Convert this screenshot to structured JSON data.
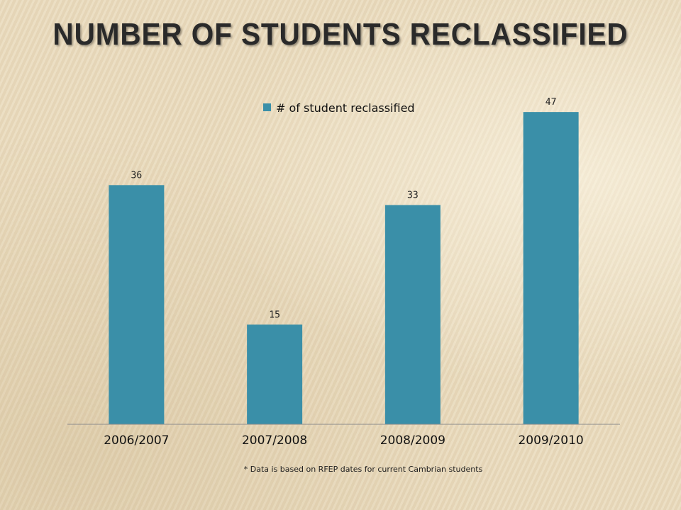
{
  "slide": {
    "title": "NUMBER OF STUDENTS RECLASSIFIED",
    "footnote": "* Data is based on RFEP dates for current Cambrian students"
  },
  "colors": {
    "bar": "#3a8fa8",
    "axis": "#8c8c8c"
  },
  "chart_data": {
    "type": "bar",
    "categories": [
      "2006/2007",
      "2007/2008",
      "2008/2009",
      "2009/2010"
    ],
    "series": [
      {
        "name": "# of student reclassified",
        "values": [
          36,
          15,
          33,
          47
        ]
      }
    ],
    "data_labels": [
      "36",
      "15",
      "33",
      "47"
    ],
    "legend_position": "top",
    "grid": false,
    "ylim": [
      0,
      50
    ]
  }
}
